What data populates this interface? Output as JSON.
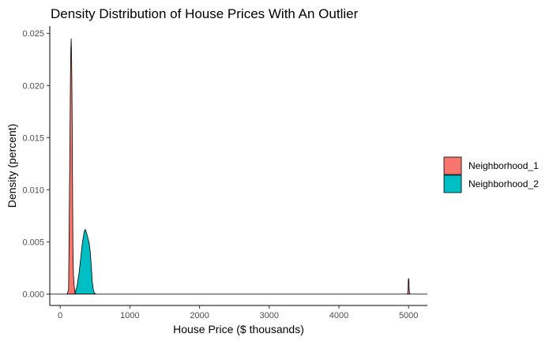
{
  "chart_data": {
    "type": "area",
    "title": "Density Distribution of House Prices With An Outlier",
    "xlabel": "House Price ($ thousands)",
    "ylabel": "Density (percent)",
    "xlim": [
      -150,
      5270
    ],
    "ylim": [
      -0.0011,
      0.0257
    ],
    "x_ticks": [
      0,
      1000,
      2000,
      3000,
      4000,
      5000
    ],
    "y_ticks": [
      0.0,
      0.005,
      0.01,
      0.015,
      0.02,
      0.025
    ],
    "x_tick_labels": [
      "0",
      "1000",
      "2000",
      "3000",
      "4000",
      "5000"
    ],
    "y_tick_labels": [
      "0.000",
      "0.005",
      "0.010",
      "0.015",
      "0.020",
      "0.025"
    ],
    "grid": false,
    "legend_position": "right",
    "series": [
      {
        "name": "Neighborhood_1",
        "color": "#F8766D",
        "x": [
          100,
          120,
          130,
          140,
          147,
          152,
          157,
          162,
          167,
          172,
          177,
          182,
          190,
          200,
          215,
          4985,
          4992,
          4997,
          5001,
          5005,
          5010,
          5020
        ],
        "values": [
          0,
          0.0004,
          0.0076,
          0.0153,
          0.021,
          0.0233,
          0.0245,
          0.0233,
          0.0205,
          0.016,
          0.0105,
          0.0045,
          0.0018,
          0.0008,
          0,
          0,
          0.0004,
          0.0014,
          0.0015,
          0.0012,
          0.0003,
          0
        ]
      },
      {
        "name": "Neighborhood_2",
        "color": "#00BFC4",
        "x": [
          210,
          240,
          270,
          300,
          320,
          345,
          360,
          380,
          400,
          415,
          430,
          445,
          460,
          475,
          490,
          510
        ],
        "values": [
          0,
          0.0007,
          0.002,
          0.0038,
          0.005,
          0.006,
          0.0062,
          0.0058,
          0.0053,
          0.0049,
          0.0041,
          0.0028,
          0.0012,
          0.0004,
          0.0001,
          0
        ]
      }
    ]
  }
}
